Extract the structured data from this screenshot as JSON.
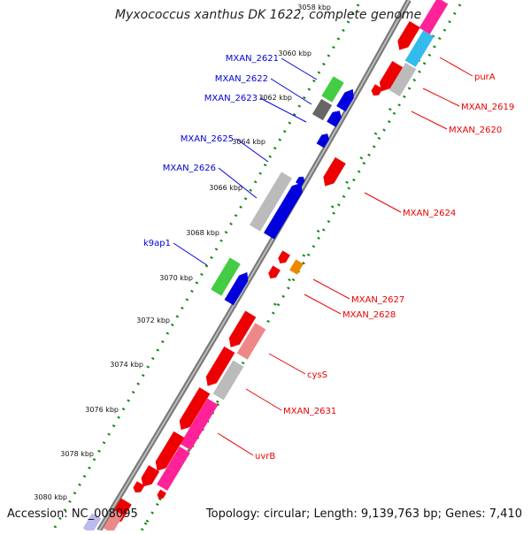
{
  "title": "Myxococcus xanthus DK 1622, complete genome",
  "footer": {
    "accession": "Accession: NC_008095",
    "topology": "Topology: circular; Length: 9,139,763 bp; Genes: 7,410"
  },
  "colors": {
    "forward": "#0000dd",
    "reverse": "#ee0000",
    "backbone": "#888888"
  },
  "scale_ticks": [
    {
      "kbp": 3058,
      "label": "3058 kbp"
    },
    {
      "kbp": 3060,
      "label": "3060 kbp"
    },
    {
      "kbp": 3062,
      "label": "3062 kbp"
    },
    {
      "kbp": 3064,
      "label": "3064 kbp"
    },
    {
      "kbp": 3066,
      "label": "3066 kbp"
    },
    {
      "kbp": 3068,
      "label": "3068 kbp"
    },
    {
      "kbp": 3070,
      "label": "3070 kbp"
    },
    {
      "kbp": 3072,
      "label": "3072 kbp"
    },
    {
      "kbp": 3074,
      "label": "3074 kbp"
    },
    {
      "kbp": 3076,
      "label": "3076 kbp"
    },
    {
      "kbp": 3078,
      "label": "3078 kbp"
    },
    {
      "kbp": 3080,
      "label": "3080 kbp"
    }
  ],
  "genes_forward": [
    {
      "name": "MXAN_2621",
      "strand": "+"
    },
    {
      "name": "MXAN_2622",
      "strand": "+"
    },
    {
      "name": "MXAN_2623",
      "strand": "+"
    },
    {
      "name": "MXAN_2625",
      "strand": "+"
    },
    {
      "name": "MXAN_2626",
      "strand": "+"
    },
    {
      "name": "k9ap1",
      "strand": "+"
    }
  ],
  "genes_reverse": [
    {
      "name": "purA",
      "strand": "-"
    },
    {
      "name": "MXAN_2619",
      "strand": "-"
    },
    {
      "name": "MXAN_2620",
      "strand": "-"
    },
    {
      "name": "MXAN_2624",
      "strand": "-"
    },
    {
      "name": "MXAN_2627",
      "strand": "-"
    },
    {
      "name": "MXAN_2628",
      "strand": "-"
    },
    {
      "name": "cysS",
      "strand": "-"
    },
    {
      "name": "MXAN_2631",
      "strand": "-"
    },
    {
      "name": "uvrB",
      "strand": "-"
    }
  ]
}
